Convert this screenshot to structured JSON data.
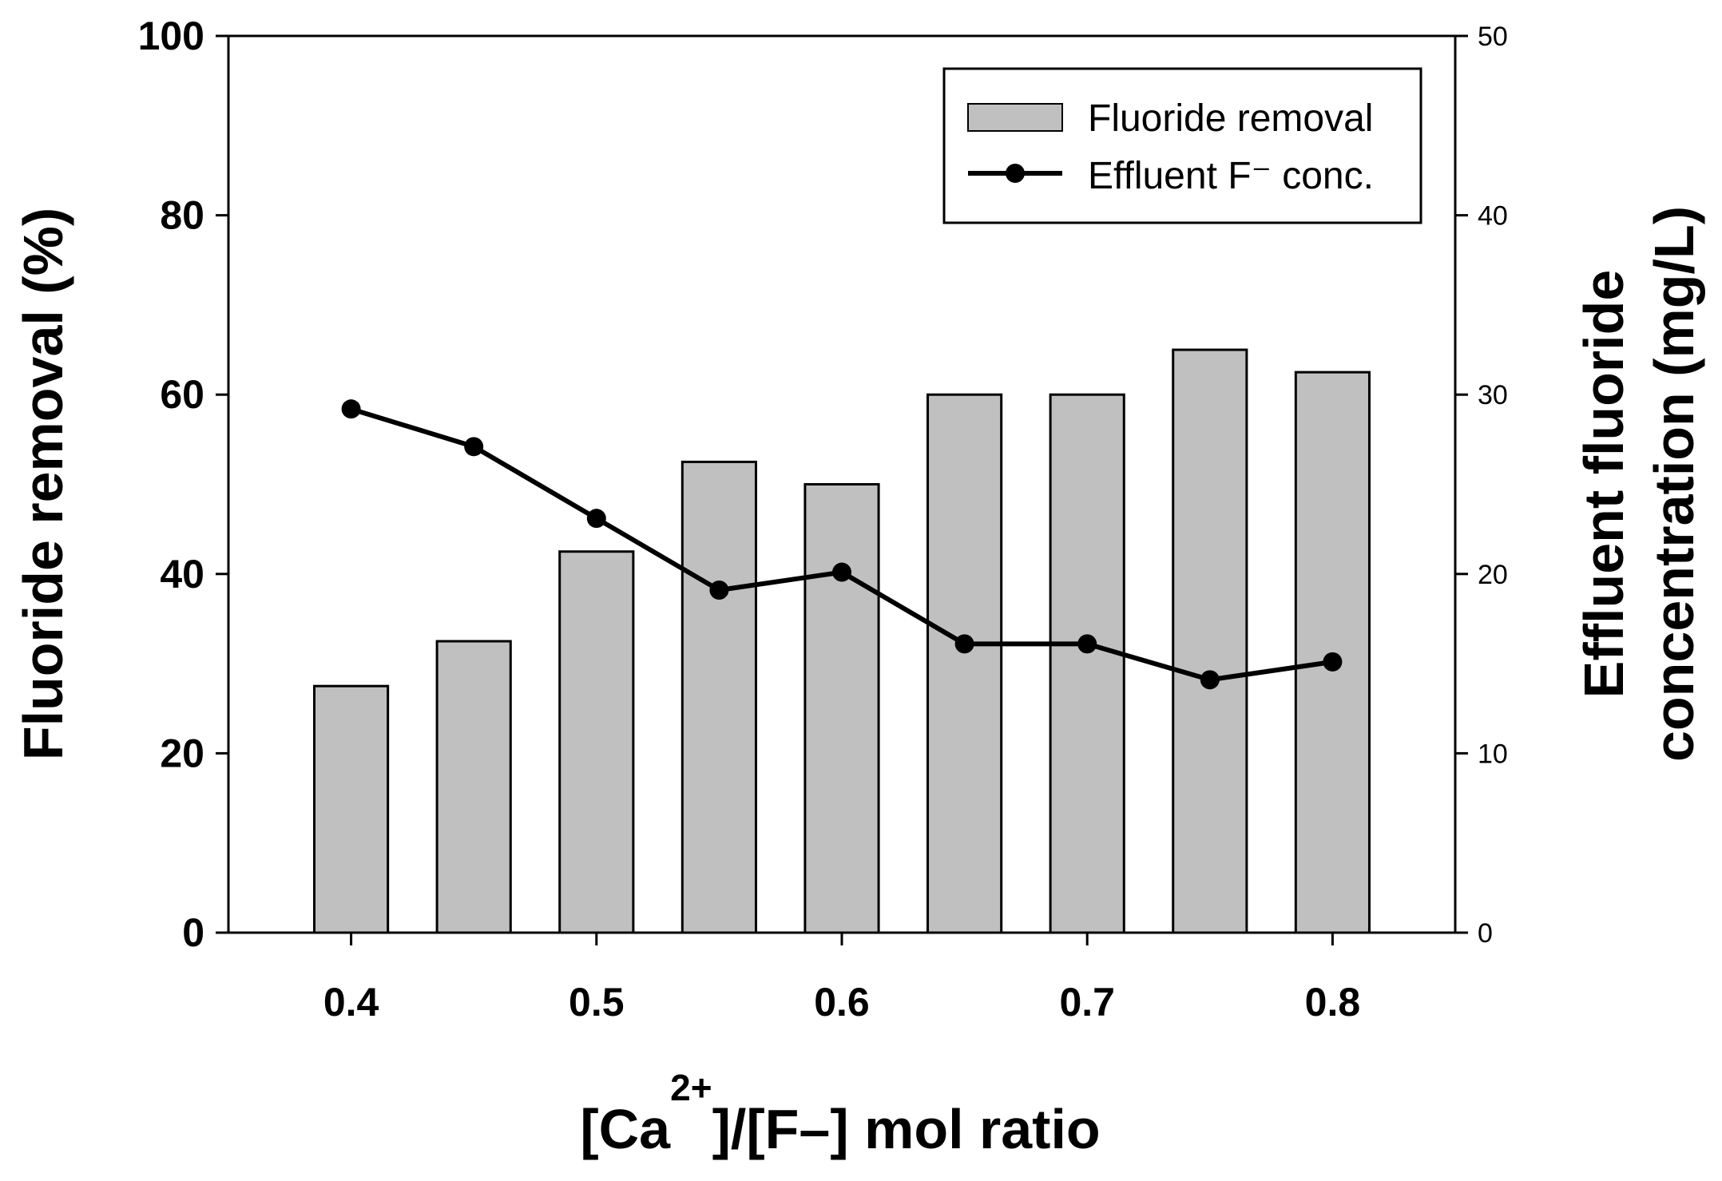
{
  "chart_data": {
    "type": "bar",
    "x": [
      0.4,
      0.45,
      0.5,
      0.55,
      0.6,
      0.65,
      0.7,
      0.75,
      0.8
    ],
    "series": [
      {
        "name": "Fluoride removal",
        "type": "bar",
        "axis": "left",
        "values": [
          27.5,
          32.5,
          42.5,
          52.5,
          50,
          60,
          60,
          65,
          62.5
        ],
        "color": "#c0c0c0"
      },
      {
        "name": "Effluent F⁻ conc.",
        "type": "line",
        "axis": "right",
        "values": [
          29.2,
          27.1,
          23.1,
          19.1,
          20.1,
          16.1,
          16.1,
          14.1,
          15.1
        ],
        "color": "#000000"
      }
    ],
    "xlabel": {
      "pre": "[Ca",
      "sup": "2+",
      "post": "]/[F–] mol ratio"
    },
    "ylabel_left": "Fluoride removal (%)",
    "ylabel_right": {
      "line1": "Effluent fluoride",
      "line2": "concentration (mg/L)"
    },
    "ylim_left": [
      0,
      100
    ],
    "ylim_right": [
      0,
      50
    ],
    "xlim": [
      0.35,
      0.85
    ],
    "yticks_left": [
      "0",
      "20",
      "40",
      "60",
      "80",
      "100"
    ],
    "yticks_right": [
      "0",
      "10",
      "20",
      "30",
      "40",
      "50"
    ],
    "xticks": [
      "0.4",
      "0.5",
      "0.6",
      "0.7",
      "0.8"
    ],
    "legend_position": "top-right",
    "grid": false
  }
}
